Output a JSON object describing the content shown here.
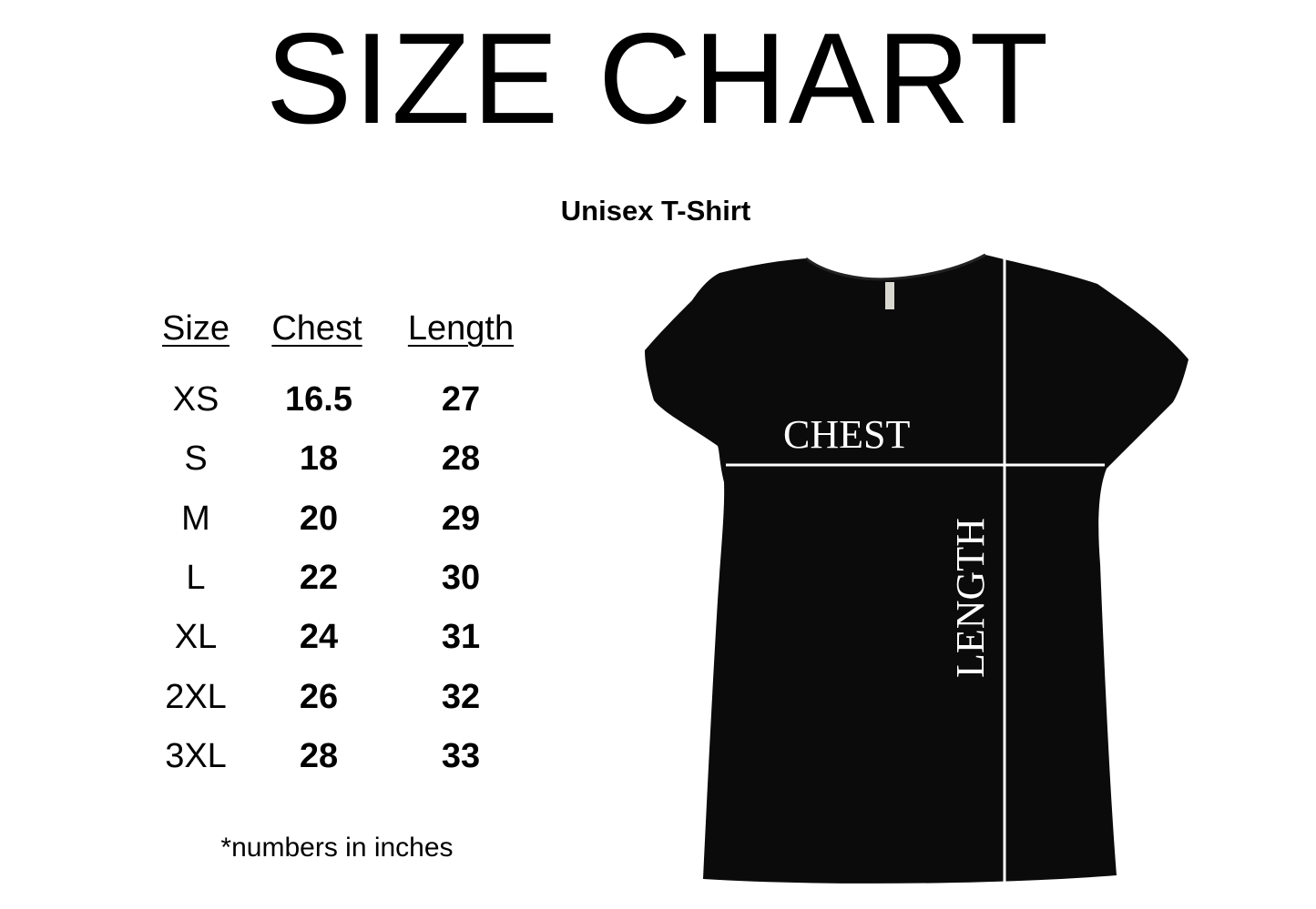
{
  "title": "SIZE CHART",
  "subtitle": "Unisex T-Shirt",
  "table": {
    "headers": [
      "Size",
      "Chest",
      "Length"
    ],
    "rows": [
      {
        "size": "XS",
        "chest": "16.5",
        "length": "27"
      },
      {
        "size": "S",
        "chest": "18",
        "length": "28"
      },
      {
        "size": "M",
        "chest": "20",
        "length": "29"
      },
      {
        "size": "L",
        "chest": "22",
        "length": "30"
      },
      {
        "size": "XL",
        "chest": "24",
        "length": "31"
      },
      {
        "size": "2XL",
        "chest": "26",
        "length": "32"
      },
      {
        "size": "3XL",
        "chest": "28",
        "length": "33"
      }
    ]
  },
  "footnote": "*numbers in inches",
  "diagram": {
    "chest_label": "CHEST",
    "length_label": "LENGTH",
    "shirt_color": "#0b0b0b",
    "line_color": "#ffffff"
  }
}
